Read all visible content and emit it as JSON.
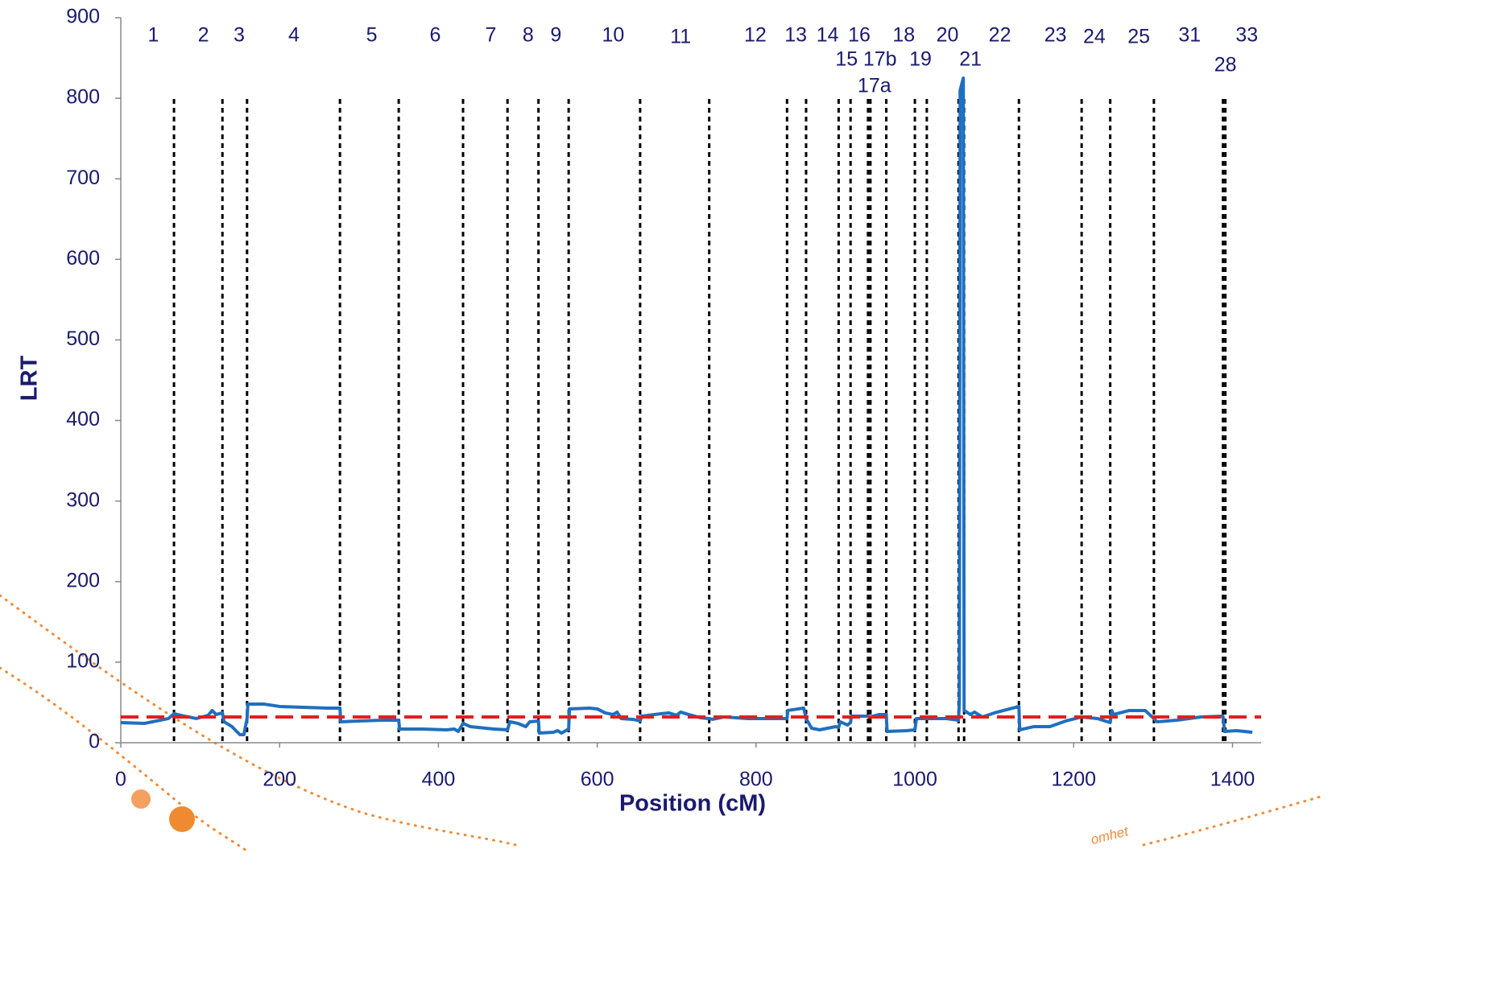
{
  "chart_data": {
    "type": "line",
    "x_label": "Position (cM)",
    "y_label": "LRT",
    "xlim": [
      0,
      1436
    ],
    "xticks": [
      0,
      200,
      400,
      600,
      800,
      1000,
      1200,
      1400
    ],
    "ylim": [
      0,
      900
    ],
    "yticks": [
      0,
      100,
      200,
      300,
      400,
      500,
      600,
      700,
      800,
      900
    ],
    "series": [
      {
        "color": "#1f6fbf",
        "x": [
          0,
          30,
          60,
          67,
          80,
          95,
          110,
          115,
          120,
          128,
          130,
          140,
          150,
          155,
          159,
          160,
          180,
          200,
          230,
          260,
          276,
          277,
          300,
          330,
          350,
          351,
          380,
          410,
          420,
          425,
          431,
          440,
          470,
          487,
          490,
          500,
          510,
          515,
          526,
          527,
          545,
          550,
          555,
          564,
          565,
          590,
          600,
          610,
          620,
          625,
          630,
          645,
          654,
          656,
          680,
          690,
          700,
          705,
          715,
          730,
          741,
          745,
          760,
          790,
          830,
          839,
          840,
          860,
          863,
          870,
          880,
          900,
          904,
          906,
          915,
          919,
          920,
          941,
          944,
          955,
          964,
          965,
          990,
          1000,
          1002,
          1015,
          1040,
          1055,
          1056,
          1057,
          1061,
          1062,
          1070,
          1075,
          1085,
          1100,
          1131,
          1132,
          1150,
          1170,
          1190,
          1210,
          1230,
          1246,
          1248,
          1250,
          1270,
          1290,
          1301,
          1305,
          1330,
          1360,
          1388,
          1390,
          1405,
          1425
        ],
        "values": [
          25,
          24,
          30,
          36,
          33,
          30,
          34,
          40,
          35,
          37,
          26,
          20,
          10,
          10,
          30,
          48,
          48,
          45,
          44,
          43,
          43,
          26,
          27,
          28,
          28,
          17,
          17,
          16,
          17,
          14,
          24,
          20,
          17,
          16,
          26,
          24,
          20,
          26,
          27,
          12,
          13,
          15,
          12,
          17,
          42,
          43,
          42,
          37,
          35,
          38,
          30,
          29,
          27,
          33,
          36,
          37,
          34,
          38,
          35,
          31,
          30,
          29,
          32,
          30,
          30,
          30,
          40,
          43,
          30,
          18,
          16,
          20,
          19,
          26,
          22,
          25,
          33,
          33,
          32,
          35,
          35,
          14,
          15,
          16,
          30,
          30,
          30,
          28,
          50,
          810,
          825,
          40,
          35,
          38,
          32,
          37,
          45,
          16,
          20,
          20,
          27,
          32,
          30,
          25,
          40,
          35,
          40,
          40,
          30,
          26,
          28,
          32,
          33,
          14,
          15,
          13
        ]
      }
    ],
    "threshold": {
      "value": 32,
      "color": "#e02020"
    },
    "boundaries": [
      67,
      128,
      159,
      276,
      350,
      431,
      487,
      526,
      564,
      654,
      741,
      839,
      863,
      904,
      919,
      941,
      944,
      964,
      1000,
      1015,
      1055,
      1062,
      1131,
      1210,
      1246,
      1301,
      1388,
      1391
    ],
    "annotations": [
      {
        "text": "1",
        "x": 41,
        "y": 877
      },
      {
        "text": "2",
        "x": 104,
        "y": 877
      },
      {
        "text": "3",
        "x": 149,
        "y": 877
      },
      {
        "text": "4",
        "x": 218,
        "y": 877
      },
      {
        "text": "5",
        "x": 316,
        "y": 877
      },
      {
        "text": "6",
        "x": 396,
        "y": 877
      },
      {
        "text": "7",
        "x": 466,
        "y": 877
      },
      {
        "text": "8",
        "x": 513,
        "y": 877
      },
      {
        "text": "9",
        "x": 548,
        "y": 877
      },
      {
        "text": "10",
        "x": 620,
        "y": 877
      },
      {
        "text": "11",
        "x": 705,
        "y": 875
      },
      {
        "text": "12",
        "x": 799,
        "y": 877
      },
      {
        "text": "13",
        "x": 850,
        "y": 877
      },
      {
        "text": "14",
        "x": 890,
        "y": 877
      },
      {
        "text": "16",
        "x": 930,
        "y": 877
      },
      {
        "text": "18",
        "x": 986,
        "y": 877
      },
      {
        "text": "20",
        "x": 1041,
        "y": 877
      },
      {
        "text": "22",
        "x": 1107,
        "y": 877
      },
      {
        "text": "23",
        "x": 1177,
        "y": 877
      },
      {
        "text": "24",
        "x": 1226,
        "y": 875
      },
      {
        "text": "25",
        "x": 1282,
        "y": 875
      },
      {
        "text": "31",
        "x": 1346,
        "y": 877
      },
      {
        "text": "33",
        "x": 1418,
        "y": 877
      },
      {
        "text": "15",
        "x": 914,
        "y": 847
      },
      {
        "text": "17b",
        "x": 956,
        "y": 847
      },
      {
        "text": "19",
        "x": 1007,
        "y": 847
      },
      {
        "text": "21",
        "x": 1070,
        "y": 847
      },
      {
        "text": "28",
        "x": 1391,
        "y": 840
      },
      {
        "text": "17a",
        "x": 949,
        "y": 814
      }
    ],
    "watermark": "omhet"
  }
}
